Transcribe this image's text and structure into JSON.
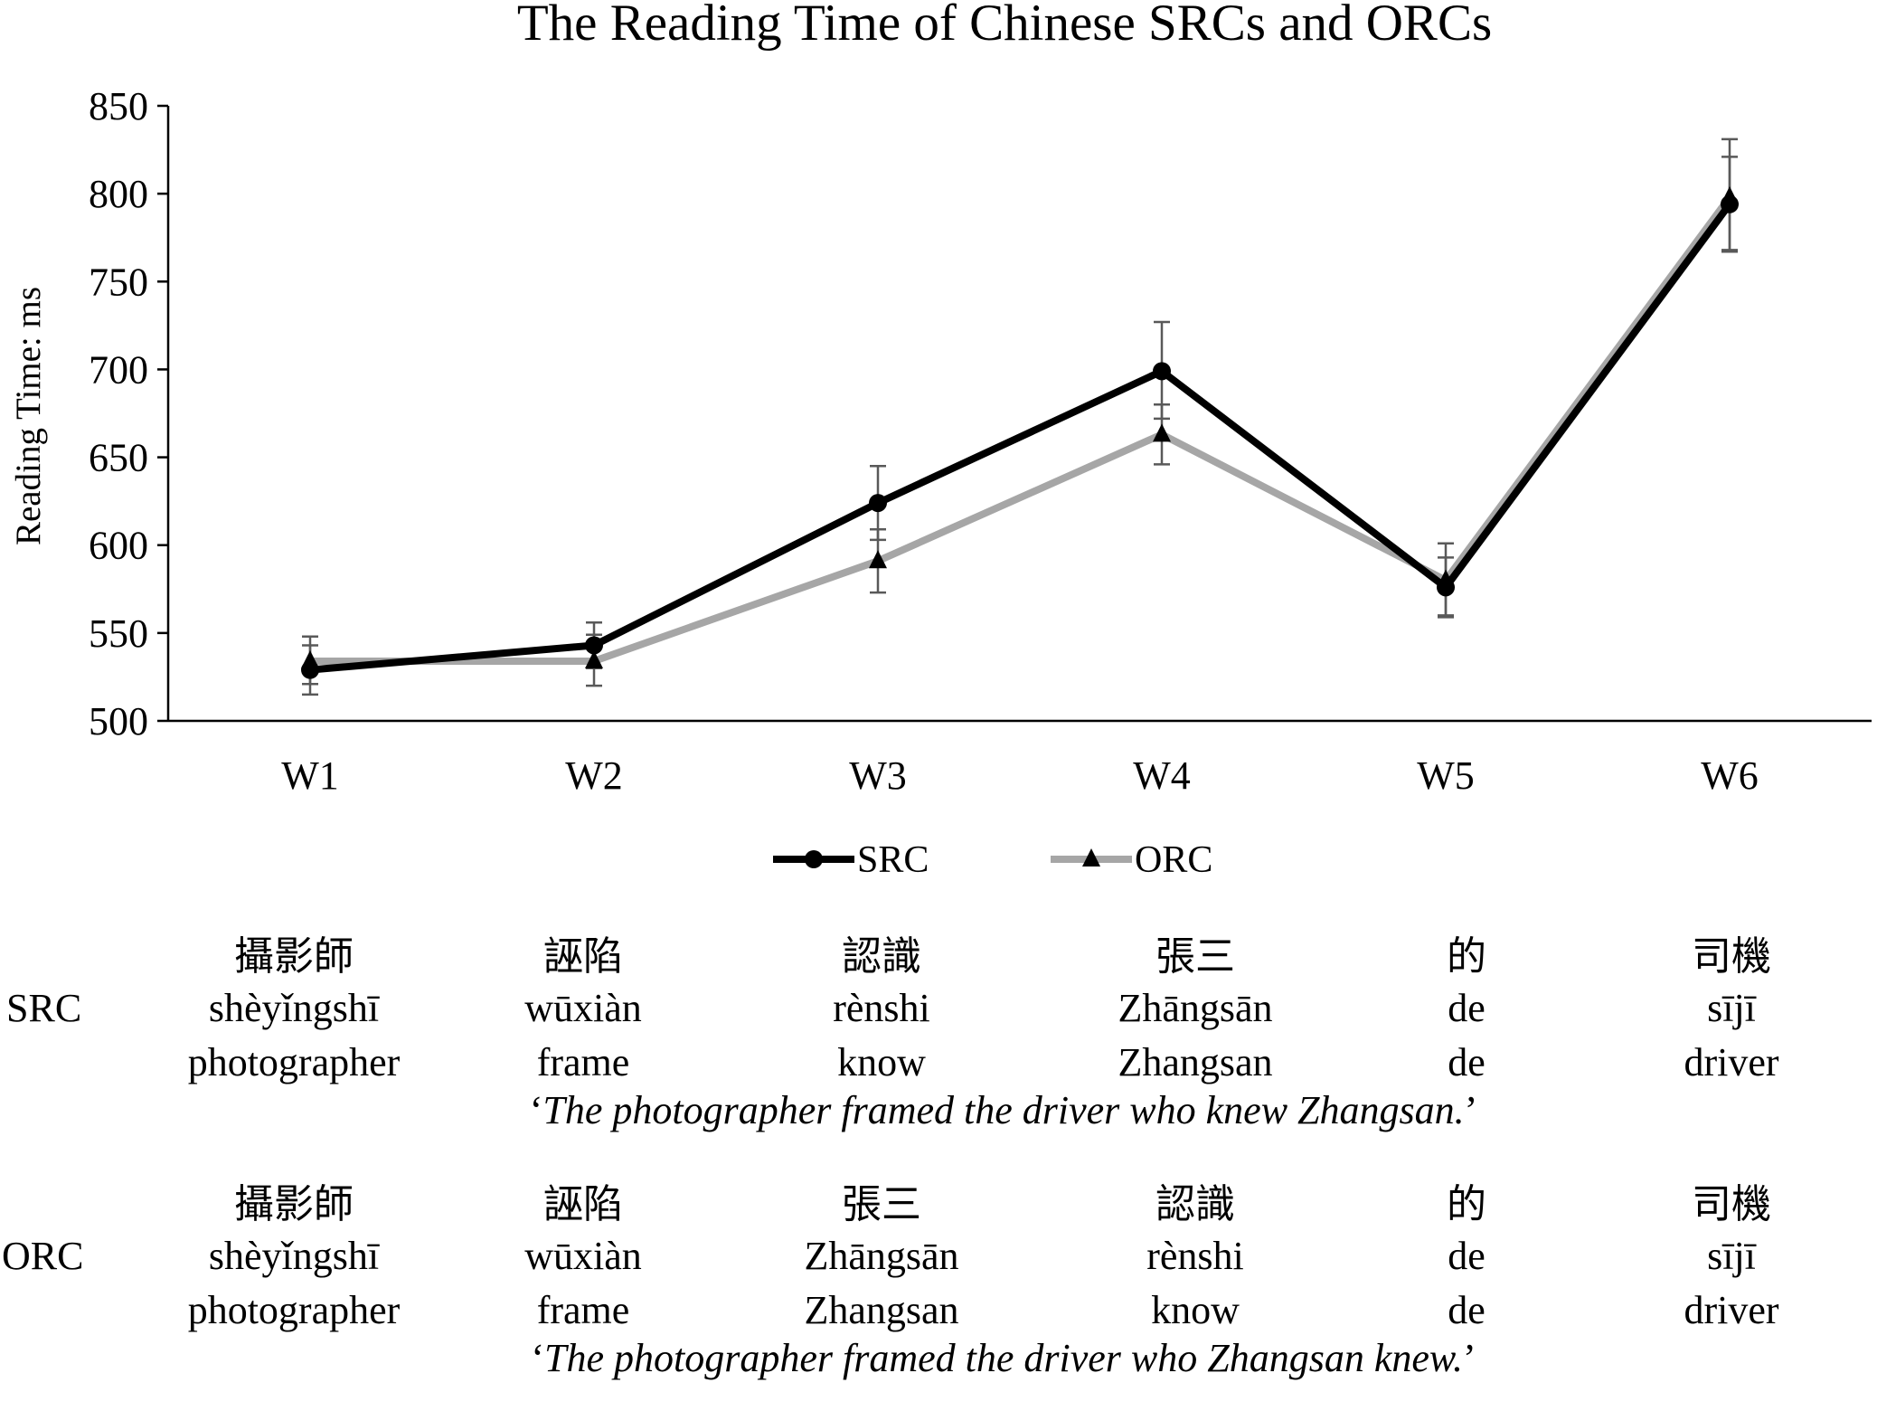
{
  "chart_data": {
    "type": "line",
    "title": "The Reading Time of Chinese SRCs and ORCs",
    "ylabel": "Reading Time: ms",
    "xlabel": "",
    "ylim": [
      500,
      850
    ],
    "yticks": [
      500,
      550,
      600,
      650,
      700,
      750,
      800,
      850
    ],
    "categories": [
      "W1",
      "W2",
      "W3",
      "W4",
      "W5",
      "W6"
    ],
    "legend_position": "bottom",
    "grid": false,
    "series": [
      {
        "name": "SRC",
        "color": "#000000",
        "marker": "circle",
        "values": [
          529,
          543,
          624,
          699,
          576,
          794
        ],
        "error_low": [
          515,
          530,
          603,
          672,
          559,
          767
        ],
        "error_high": [
          543,
          556,
          645,
          727,
          593,
          821
        ]
      },
      {
        "name": "ORC",
        "color": "#a6a6a6",
        "marker": "triangle",
        "values": [
          534,
          534,
          591,
          663,
          580,
          798
        ],
        "error_low": [
          521,
          520,
          573,
          646,
          560,
          768
        ],
        "error_high": [
          548,
          549,
          609,
          680,
          601,
          831
        ]
      }
    ]
  },
  "gloss": {
    "rows": [
      {
        "label": "SRC",
        "chinese": [
          "攝影師",
          "誣陷",
          "認識",
          "張三",
          "的",
          "司機"
        ],
        "pinyin": [
          "shèyǐngshī",
          "wūxiàn",
          "rènshi",
          "Zhāngsān",
          "de",
          "sījī"
        ],
        "english": [
          "photographer",
          "frame",
          "know",
          "Zhangsan",
          "de",
          "driver"
        ],
        "translation_open": "‘",
        "translation": "The photographer framed the driver who knew Zhangsan.",
        "translation_close": "’"
      },
      {
        "label": "ORC",
        "chinese": [
          "攝影師",
          "誣陷",
          "張三",
          "認識",
          "的",
          "司機"
        ],
        "pinyin": [
          "shèyǐngshī",
          "wūxiàn",
          "Zhāngsān",
          "rènshi",
          "de",
          "sījī"
        ],
        "english": [
          "photographer",
          "frame",
          "Zhangsan",
          "know",
          "de",
          "driver"
        ],
        "translation_open": "‘",
        "translation": "The photographer framed the driver who Zhangsan knew.",
        "translation_close": "’"
      }
    ]
  }
}
